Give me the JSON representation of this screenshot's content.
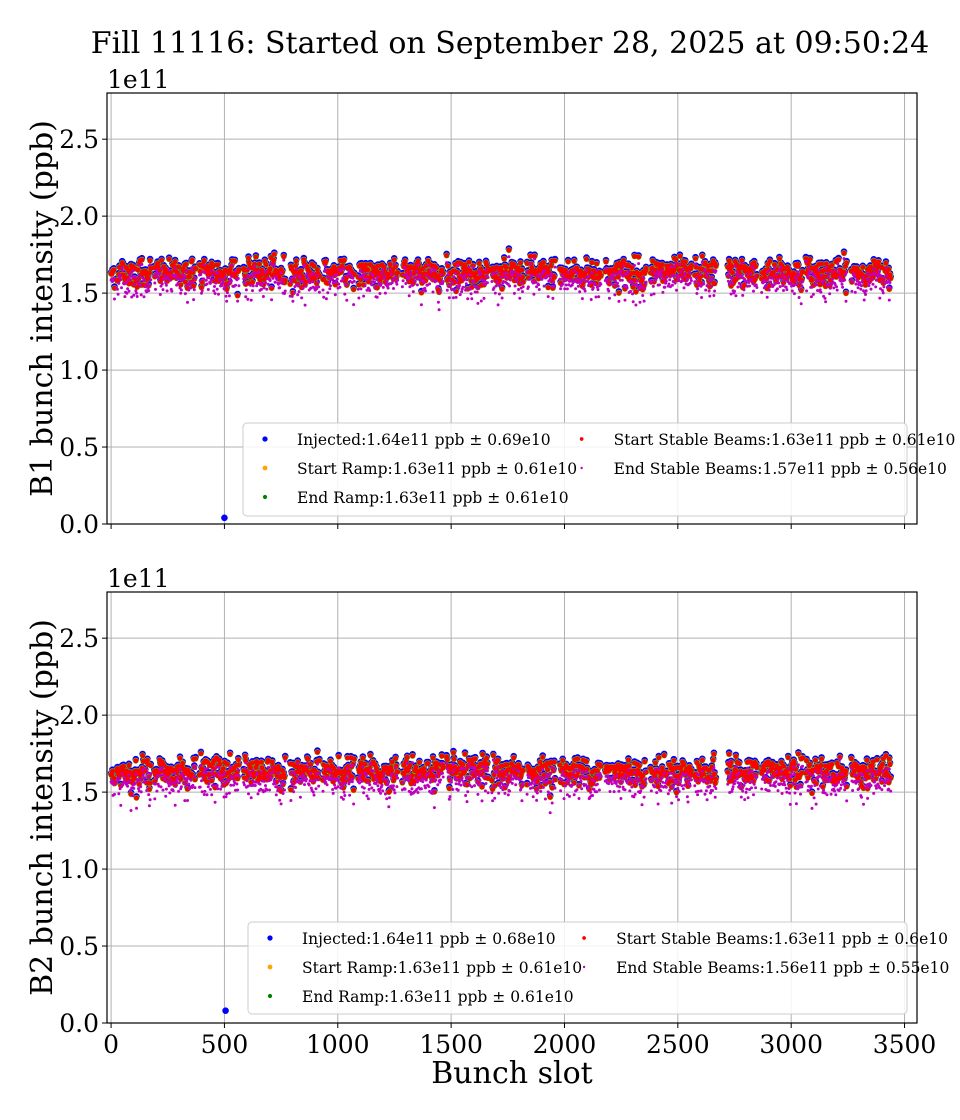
{
  "title": "Fill 11116: Started on September 28, 2025 at 09:50:24",
  "chart_data": [
    {
      "type": "scatter",
      "ylabel": "B1 bunch intensity (ppb)",
      "xlabel": "",
      "offset_text": "1e11",
      "xlim": [
        -18,
        3555
      ],
      "ylim": [
        0,
        2.8
      ],
      "x_ticks": [
        0,
        500,
        1000,
        1500,
        2000,
        2500,
        3000,
        3500
      ],
      "x_tick_labels_shown": false,
      "y_ticks": [
        "0.0",
        "0.5",
        "1.0",
        "1.5",
        "2.0",
        "2.5"
      ],
      "grid": true,
      "legend_placement": "lower-right",
      "filled_bunch_trains": [
        [
          0,
          15
        ],
        [
          25,
          175
        ],
        [
          190,
          375
        ],
        [
          390,
          565
        ],
        [
          585,
          770
        ],
        [
          790,
          920
        ],
        [
          935,
          1075
        ],
        [
          1090,
          1265
        ],
        [
          1285,
          1465
        ],
        [
          1480,
          1665
        ],
        [
          1680,
          1820
        ],
        [
          1835,
          1960
        ],
        [
          1980,
          2160
        ],
        [
          2180,
          2360
        ],
        [
          2380,
          2560
        ],
        [
          2575,
          2670
        ],
        [
          2720,
          2850
        ],
        [
          2870,
          3050
        ],
        [
          3065,
          3245
        ],
        [
          3265,
          3440
        ]
      ],
      "series": [
        {
          "name": "Injected:1.64e11 ppb ± 0.69e10",
          "mean": 1.64,
          "std": 0.069,
          "color": "#0000ff",
          "outliers": [
            [
              500,
              0.04
            ]
          ]
        },
        {
          "name": "Start Ramp:1.63e11 ppb ± 0.61e10",
          "mean": 1.63,
          "std": 0.061,
          "color": "#ffa500"
        },
        {
          "name": "End Ramp:1.63e11 ppb ± 0.61e10",
          "mean": 1.63,
          "std": 0.061,
          "color": "#008000"
        },
        {
          "name": "Start Stable Beams:1.63e11 ppb ± 0.61e10",
          "mean": 1.63,
          "std": 0.061,
          "color": "#ff0000"
        },
        {
          "name": "End Stable Beams:1.57e11 ppb ± 0.56e10",
          "mean": 1.57,
          "std": 0.056,
          "color": "#bf00bf"
        }
      ]
    },
    {
      "type": "scatter",
      "ylabel": "B2 bunch intensity (ppb)",
      "xlabel": "Bunch slot",
      "offset_text": "1e11",
      "xlim": [
        -18,
        3555
      ],
      "ylim": [
        0,
        2.8
      ],
      "x_ticks": [
        0,
        500,
        1000,
        1500,
        2000,
        2500,
        3000,
        3500
      ],
      "x_tick_labels_shown": true,
      "y_ticks": [
        "0.0",
        "0.5",
        "1.0",
        "1.5",
        "2.0",
        "2.5"
      ],
      "grid": true,
      "legend_placement": "lower-right",
      "filled_bunch_trains": [
        [
          0,
          15
        ],
        [
          25,
          175
        ],
        [
          190,
          375
        ],
        [
          390,
          565
        ],
        [
          585,
          770
        ],
        [
          790,
          920
        ],
        [
          935,
          1075
        ],
        [
          1090,
          1265
        ],
        [
          1285,
          1465
        ],
        [
          1480,
          1665
        ],
        [
          1680,
          1820
        ],
        [
          1835,
          1960
        ],
        [
          1980,
          2160
        ],
        [
          2180,
          2360
        ],
        [
          2380,
          2560
        ],
        [
          2575,
          2670
        ],
        [
          2720,
          2850
        ],
        [
          2870,
          3050
        ],
        [
          3065,
          3245
        ],
        [
          3265,
          3440
        ]
      ],
      "series": [
        {
          "name": "Injected:1.64e11 ppb ± 0.68e10",
          "mean": 1.64,
          "std": 0.068,
          "color": "#0000ff",
          "outliers": [
            [
              505,
              0.08
            ]
          ]
        },
        {
          "name": "Start Ramp:1.63e11 ppb ± 0.61e10",
          "mean": 1.63,
          "std": 0.061,
          "color": "#ffa500"
        },
        {
          "name": "End Ramp:1.63e11 ppb ± 0.61e10",
          "mean": 1.63,
          "std": 0.061,
          "color": "#008000"
        },
        {
          "name": "Start Stable Beams:1.63e11 ppb ± 0.6e10",
          "mean": 1.63,
          "std": 0.06,
          "color": "#ff0000"
        },
        {
          "name": "End Stable Beams:1.56e11 ppb ± 0.55e10",
          "mean": 1.56,
          "std": 0.055,
          "color": "#bf00bf"
        }
      ]
    }
  ]
}
